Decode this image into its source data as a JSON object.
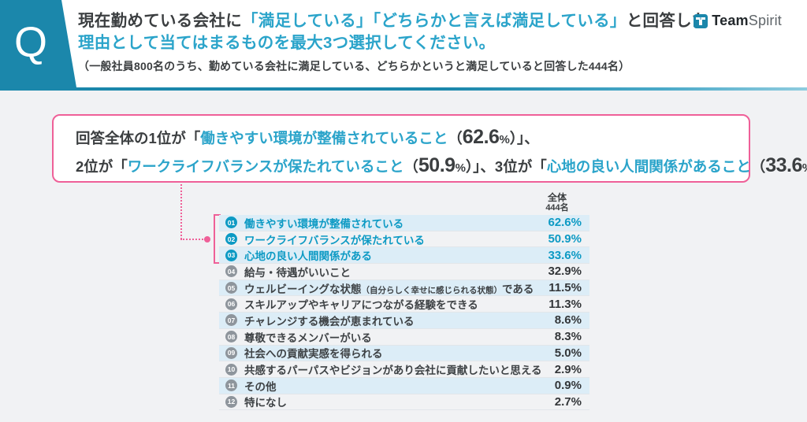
{
  "colors": {
    "teal_brand": "#1b87ab",
    "teal_text": "#2ba4ca",
    "teal_list": "#0d9ac4",
    "pink_accent": "#ef6098",
    "row_alt_bg": "#dcedf7",
    "dark_text": "#3b3e40",
    "gray_badge": "#8e959c",
    "page_bg": "#f1f2f4"
  },
  "header": {
    "q_mark": "Q",
    "title_line1": [
      {
        "t": "現在勤めている会社に",
        "c": "dk"
      },
      {
        "t": "「満足している」「どちらかと言えば満足している」",
        "c": "bl"
      },
      {
        "t": "と回答した",
        "c": "dk"
      }
    ],
    "title_line2": [
      {
        "t": "理由として当てはまるものを最大3つ選択してください。",
        "c": "bl"
      }
    ],
    "subtitle": "（一般社員800名のうち、勤めている会社に満足している、どちらかというと満足していると回答した444名）",
    "logo": {
      "team": "Team",
      "spirit": "Spirit"
    }
  },
  "summary": {
    "line1": [
      {
        "t": "回答全体の1位が「",
        "c": "dk"
      },
      {
        "t": "働きやすい環境が整備されていること",
        "c": "bl"
      },
      {
        "t": "（",
        "c": "dk"
      },
      {
        "t": "62.6",
        "c": "num"
      },
      {
        "t": "%",
        "c": "pct"
      },
      {
        "t": "）」、",
        "c": "dk"
      }
    ],
    "line2": [
      {
        "t": "2位が「",
        "c": "dk"
      },
      {
        "t": "ワークライフバランスが保たれていること",
        "c": "bl"
      },
      {
        "t": "（",
        "c": "dk"
      },
      {
        "t": "50.9",
        "c": "num"
      },
      {
        "t": "%",
        "c": "pct"
      },
      {
        "t": "）」、3位が「",
        "c": "dk"
      },
      {
        "t": "心地の良い人間関係があること",
        "c": "bl"
      },
      {
        "t": "（",
        "c": "dk"
      },
      {
        "t": "33.6",
        "c": "num"
      },
      {
        "t": "%",
        "c": "pct"
      },
      {
        "t": "）」。",
        "c": "dk"
      }
    ]
  },
  "table": {
    "column_header": {
      "line1": "全体",
      "line2": "444名"
    },
    "rows": [
      {
        "rank": "01",
        "parts": [
          {
            "t": "働きやすい環境が整備されている"
          }
        ],
        "value": "62.6%",
        "top": true
      },
      {
        "rank": "02",
        "parts": [
          {
            "t": "ワークライフバランスが保たれている"
          }
        ],
        "value": "50.9%",
        "top": true
      },
      {
        "rank": "03",
        "parts": [
          {
            "t": "心地の良い人間関係がある"
          }
        ],
        "value": "33.6%",
        "top": true
      },
      {
        "rank": "04",
        "parts": [
          {
            "t": "給与・待遇がいいこと"
          }
        ],
        "value": "32.9%",
        "top": false
      },
      {
        "rank": "05",
        "parts": [
          {
            "t": "ウェルビーイングな状態"
          },
          {
            "t": "（自分らしく幸せに感じられる状態）",
            "small": true
          },
          {
            "t": "である"
          }
        ],
        "value": "11.5%",
        "top": false
      },
      {
        "rank": "06",
        "parts": [
          {
            "t": "スキルアップやキャリアにつながる経験をできる"
          }
        ],
        "value": "11.3%",
        "top": false
      },
      {
        "rank": "07",
        "parts": [
          {
            "t": "チャレンジする機会が恵まれている"
          }
        ],
        "value": "8.6%",
        "top": false
      },
      {
        "rank": "08",
        "parts": [
          {
            "t": "尊敬できるメンバーがいる"
          }
        ],
        "value": "8.3%",
        "top": false
      },
      {
        "rank": "09",
        "parts": [
          {
            "t": "社会への貢献実感を得られる"
          }
        ],
        "value": "5.0%",
        "top": false
      },
      {
        "rank": "10",
        "parts": [
          {
            "t": "共感するパーパスやビジョンがあり会社に貢献したいと思える"
          }
        ],
        "value": "2.9%",
        "top": false
      },
      {
        "rank": "11",
        "parts": [
          {
            "t": "その他"
          }
        ],
        "value": "0.9%",
        "top": false
      },
      {
        "rank": "12",
        "parts": [
          {
            "t": "特になし"
          }
        ],
        "value": "2.7%",
        "top": false
      }
    ]
  },
  "chart_data": {
    "type": "table",
    "title": "現在勤めている会社に「満足している」「どちらかと言えば満足している」と回答した理由として当てはまるものを最大3つ選択してください。",
    "subtitle": "（一般社員800名のうち、勤めている会社に満足している、どちらかというと満足していると回答した444名）",
    "group_label": "全体 444名",
    "n": 444,
    "categories": [
      "働きやすい環境が整備されている",
      "ワークライフバランスが保たれている",
      "心地の良い人間関係がある",
      "給与・待遇がいいこと",
      "ウェルビーイングな状態（自分らしく幸せに感じられる状態）である",
      "スキルアップやキャリアにつながる経験をできる",
      "チャレンジする機会が恵まれている",
      "尊敬できるメンバーがいる",
      "社会への貢献実感を得られる",
      "共感するパーパスやビジョンがあり会社に貢献したいと思える",
      "その他",
      "特になし"
    ],
    "values": [
      62.6,
      50.9,
      33.6,
      32.9,
      11.5,
      11.3,
      8.6,
      8.3,
      5.0,
      2.9,
      0.9,
      2.7
    ],
    "unit": "%",
    "highlighted_ranks": [
      1,
      2,
      3
    ]
  }
}
